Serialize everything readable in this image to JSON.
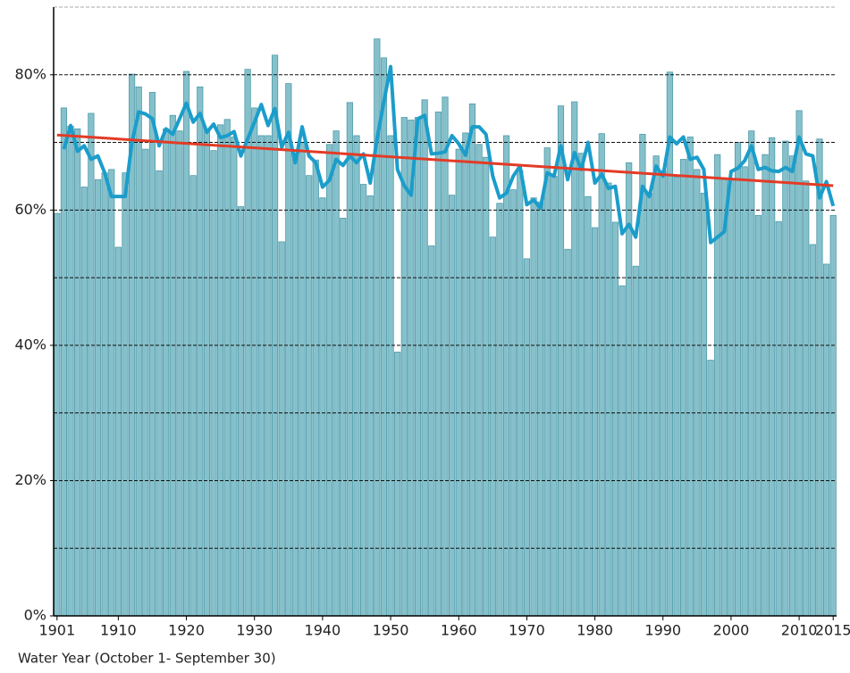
{
  "chart_data": {
    "type": "bar",
    "x_label": "Water Year (October 1- September 30)",
    "x": [
      1901,
      1902,
      1903,
      1904,
      1905,
      1906,
      1907,
      1908,
      1909,
      1910,
      1911,
      1912,
      1913,
      1914,
      1915,
      1916,
      1917,
      1918,
      1919,
      1920,
      1921,
      1922,
      1923,
      1924,
      1925,
      1926,
      1927,
      1928,
      1929,
      1930,
      1931,
      1932,
      1933,
      1934,
      1935,
      1936,
      1937,
      1938,
      1939,
      1940,
      1941,
      1942,
      1943,
      1944,
      1945,
      1946,
      1947,
      1948,
      1949,
      1950,
      1951,
      1952,
      1953,
      1954,
      1955,
      1956,
      1957,
      1958,
      1959,
      1960,
      1961,
      1962,
      1963,
      1964,
      1965,
      1966,
      1967,
      1968,
      1969,
      1970,
      1971,
      1972,
      1973,
      1974,
      1975,
      1976,
      1977,
      1978,
      1979,
      1980,
      1981,
      1982,
      1983,
      1984,
      1985,
      1986,
      1987,
      1988,
      1989,
      1990,
      1991,
      1992,
      1993,
      1994,
      1995,
      1996,
      1997,
      1998,
      1999,
      2000,
      2001,
      2002,
      2003,
      2004,
      2005,
      2006,
      2007,
      2008,
      2009,
      2010,
      2011,
      2012,
      2013,
      2014,
      2015
    ],
    "series": [
      {
        "type": "bar",
        "color": "#86c1cb",
        "values": [
          59.5,
          75.1,
          72.4,
          72,
          63.4,
          74.3,
          64.5,
          65.5,
          66,
          54.5,
          65.5,
          80.1,
          78.2,
          69,
          77.4,
          65.8,
          72,
          74,
          71.7,
          80.5,
          65.1,
          78.2,
          72,
          68.8,
          72.6,
          73.4,
          70.8,
          60.5,
          80.8,
          75.1,
          71,
          71,
          82.9,
          55.3,
          78.7,
          68.4,
          70,
          65.1,
          67.4,
          61.8,
          69.7,
          71.7,
          58.8,
          75.9,
          71,
          63.8,
          62.1,
          85.3,
          82.5,
          71,
          39,
          73.7,
          73.3,
          73.7,
          76.3,
          54.7,
          74.5,
          76.7,
          62.2,
          69,
          71.4,
          75.7,
          69.7,
          67.8,
          56,
          61,
          71,
          63,
          65.8,
          52.8,
          61.8,
          61.2,
          69.2,
          65,
          75.4,
          54.2,
          76,
          68.4,
          62,
          57.4,
          71.3,
          64,
          58.2,
          48.8,
          67,
          51.7,
          71.2,
          62.5,
          68,
          65.8,
          80.4,
          64.9,
          67.5,
          70.8,
          66,
          62.5,
          37.8,
          68.2,
          64.5,
          64.5,
          70,
          66.4,
          71.7,
          59.2,
          68.2,
          70.7,
          58.3,
          70.2,
          68,
          74.7,
          64.3,
          54.9,
          70.5,
          52,
          59.2
        ]
      },
      {
        "type": "line",
        "color": "#1b9dcb",
        "values": [
          null,
          69,
          72.5,
          68.7,
          69.5,
          67.5,
          68,
          65.5,
          62,
          62,
          62,
          70,
          74.5,
          74.2,
          73.5,
          69.5,
          72,
          71.2,
          73.5,
          75.8,
          73,
          74.3,
          71.5,
          72.7,
          70.7,
          71,
          71.6,
          68,
          70.5,
          73,
          75.6,
          72.5,
          75,
          69.3,
          71.5,
          67,
          72.3,
          68,
          67,
          63.4,
          64.4,
          67.5,
          66.6,
          68,
          67,
          68.3,
          64,
          70.5,
          76,
          81.2,
          66,
          63.6,
          62.2,
          73.5,
          74,
          68.3,
          68.4,
          68.6,
          71,
          69.8,
          68.1,
          72.3,
          72.3,
          71.2,
          65,
          61.8,
          62.5,
          65,
          66.5,
          60.8,
          61.5,
          60.3,
          65.5,
          65,
          69.5,
          64.5,
          68.5,
          66,
          70,
          64,
          65.3,
          63.2,
          63.5,
          56.5,
          57.9,
          56,
          63.5,
          62,
          66.5,
          65,
          70.8,
          69.8,
          70.8,
          67.5,
          67.8,
          66,
          55.2,
          56,
          56.8,
          65.7,
          66.2,
          67.3,
          69.5,
          66,
          66.3,
          65.8,
          65.7,
          66.3,
          65.7,
          70.8,
          68.3,
          68,
          61.8,
          64.2,
          60.6
        ]
      }
    ],
    "trend": {
      "color": "#e33b26",
      "x": [
        1901,
        2015
      ],
      "values": [
        71.1,
        63.6
      ]
    },
    "xlim": [
      1900.5,
      2015.5
    ],
    "xticks": [
      1901,
      1910,
      1920,
      1930,
      1940,
      1950,
      1960,
      1970,
      1980,
      1990,
      2000,
      2010,
      2015
    ],
    "ylim": [
      0,
      90
    ],
    "yticks": [
      {
        "value": 0,
        "label": "0%"
      },
      {
        "value": 20,
        "label": "20%"
      },
      {
        "value": 40,
        "label": "40%"
      },
      {
        "value": 60,
        "label": "60%"
      },
      {
        "value": 80,
        "label": "80%"
      }
    ],
    "grid_lines": [
      10,
      20,
      30,
      40,
      50,
      60,
      70,
      80,
      90
    ],
    "grid": true
  }
}
